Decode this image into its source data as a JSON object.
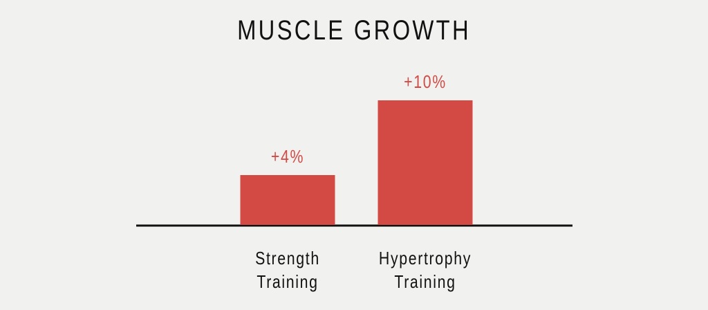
{
  "chart_data": {
    "type": "bar",
    "title": "MUSCLE GROWTH",
    "categories": [
      "Strength Training",
      "Hypertrophy Training"
    ],
    "values": [
      4,
      10
    ],
    "value_labels": [
      "+4%",
      "+10%"
    ],
    "color": "#d34a45"
  }
}
